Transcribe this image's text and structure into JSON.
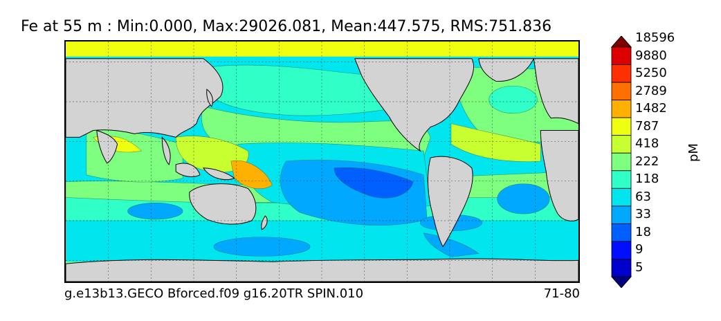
{
  "chart_data": {
    "type": "heatmap",
    "title": "Fe at 55 m : Min:0.000, Max:29026.081, Mean:447.575, RMS:751.836",
    "footer_left": "g.e13b13.GECO Bforced.f09 g16.20TR SPIN.010",
    "footer_right": "71-80",
    "units": "pM",
    "levels": [
      "5",
      "9",
      "18",
      "33",
      "63",
      "118",
      "222",
      "418",
      "787",
      "1482",
      "2789",
      "5250",
      "9880",
      "18596"
    ],
    "level_colors": [
      "#000080",
      "#0000cd",
      "#0010ff",
      "#0060ff",
      "#00a8ff",
      "#00e5ee",
      "#30ffc8",
      "#7fff7f",
      "#c8ff30",
      "#f0ff10",
      "#ffb000",
      "#ff7000",
      "#ff3000",
      "#dd0000",
      "#800000"
    ],
    "land_color": "#d3d3d3",
    "grid": true,
    "colorbar_position": "right",
    "colorbar_extend": "both"
  }
}
